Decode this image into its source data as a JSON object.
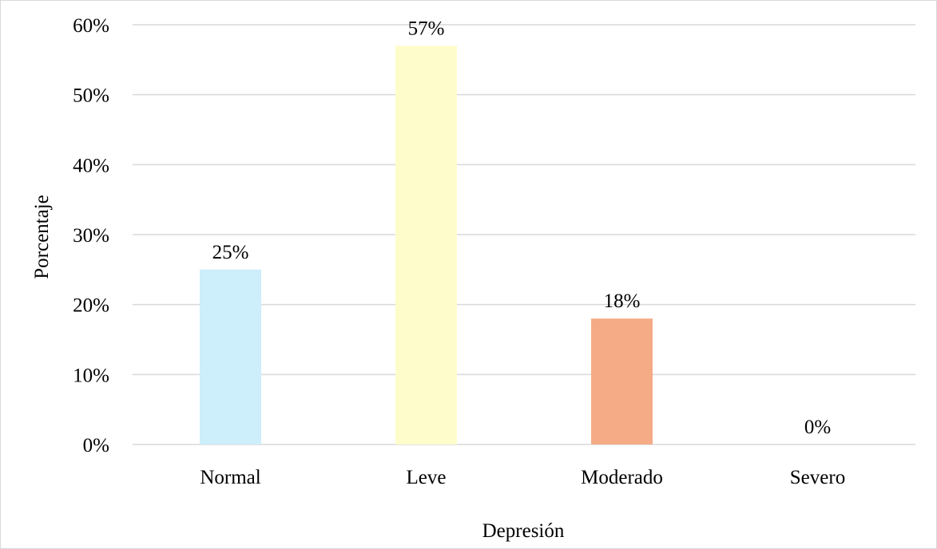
{
  "chart_data": {
    "type": "bar",
    "categories": [
      "Normal",
      "Leve",
      "Moderado",
      "Severo"
    ],
    "values": [
      25,
      57,
      18,
      0
    ],
    "data_labels": [
      "25%",
      "57%",
      "18%",
      "0%"
    ],
    "colors": [
      "#cdeefb",
      "#fffccc",
      "#f4ab86",
      "#cccccc"
    ],
    "title": "",
    "xlabel": "Depresión",
    "ylabel": "Porcentaje",
    "ylim": [
      0,
      60
    ],
    "yticks": [
      0,
      10,
      20,
      30,
      40,
      50,
      60
    ],
    "ytick_labels": [
      "0%",
      "10%",
      "20%",
      "30%",
      "40%",
      "50%",
      "60%"
    ],
    "grid": true,
    "gridline_color": "#d9d9d9",
    "legend": "none"
  }
}
